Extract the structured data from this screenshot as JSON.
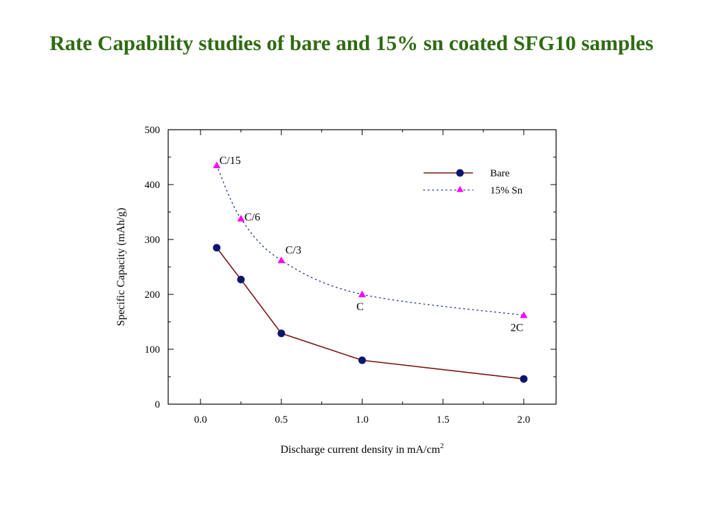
{
  "slide": {
    "title": "Rate Capability studies of bare and 15% sn coated SFG10 samples"
  },
  "chart_data": {
    "type": "line",
    "title": "Rate Capability studies of bare and 15% sn coated SFG10 samples",
    "xlabel": "Discharge current density in mA/cm",
    "xlabel_superscript": "2",
    "ylabel": "Specific Capacity (mAh/g)",
    "xlim": [
      -0.2,
      2.2
    ],
    "ylim": [
      0,
      500
    ],
    "xticks": [
      0.0,
      0.5,
      1.0,
      1.5,
      2.0
    ],
    "xtick_labels": [
      "0.0",
      "0.5",
      "1.0",
      "1.5",
      "2.0"
    ],
    "yticks": [
      0,
      100,
      200,
      300,
      400,
      500
    ],
    "ytick_labels": [
      "0",
      "100",
      "200",
      "300",
      "400",
      "500"
    ],
    "grid": false,
    "legend_position": "top-right",
    "series": [
      {
        "name": "Bare",
        "color": "#7a1010",
        "marker_color": "#0a1670",
        "marker": "circle",
        "line_style": "solid",
        "x": [
          0.1,
          0.25,
          0.5,
          1.0,
          2.0
        ],
        "y": [
          285,
          227,
          129,
          80,
          46
        ]
      },
      {
        "name": "15% Sn",
        "color": "#1a2a8a",
        "marker_color": "#ff00ff",
        "marker": "triangle",
        "line_style": "dotted",
        "x": [
          0.1,
          0.25,
          0.5,
          1.0,
          2.0
        ],
        "y": [
          435,
          338,
          262,
          200,
          162
        ]
      }
    ],
    "annotations": [
      {
        "text": "C/15",
        "x": 0.1,
        "y": 435
      },
      {
        "text": "C/6",
        "x": 0.25,
        "y": 338
      },
      {
        "text": "C/3",
        "x": 0.5,
        "y": 262
      },
      {
        "text": "C",
        "x": 1.0,
        "y": 200
      },
      {
        "text": "2C",
        "x": 2.0,
        "y": 162
      }
    ]
  }
}
